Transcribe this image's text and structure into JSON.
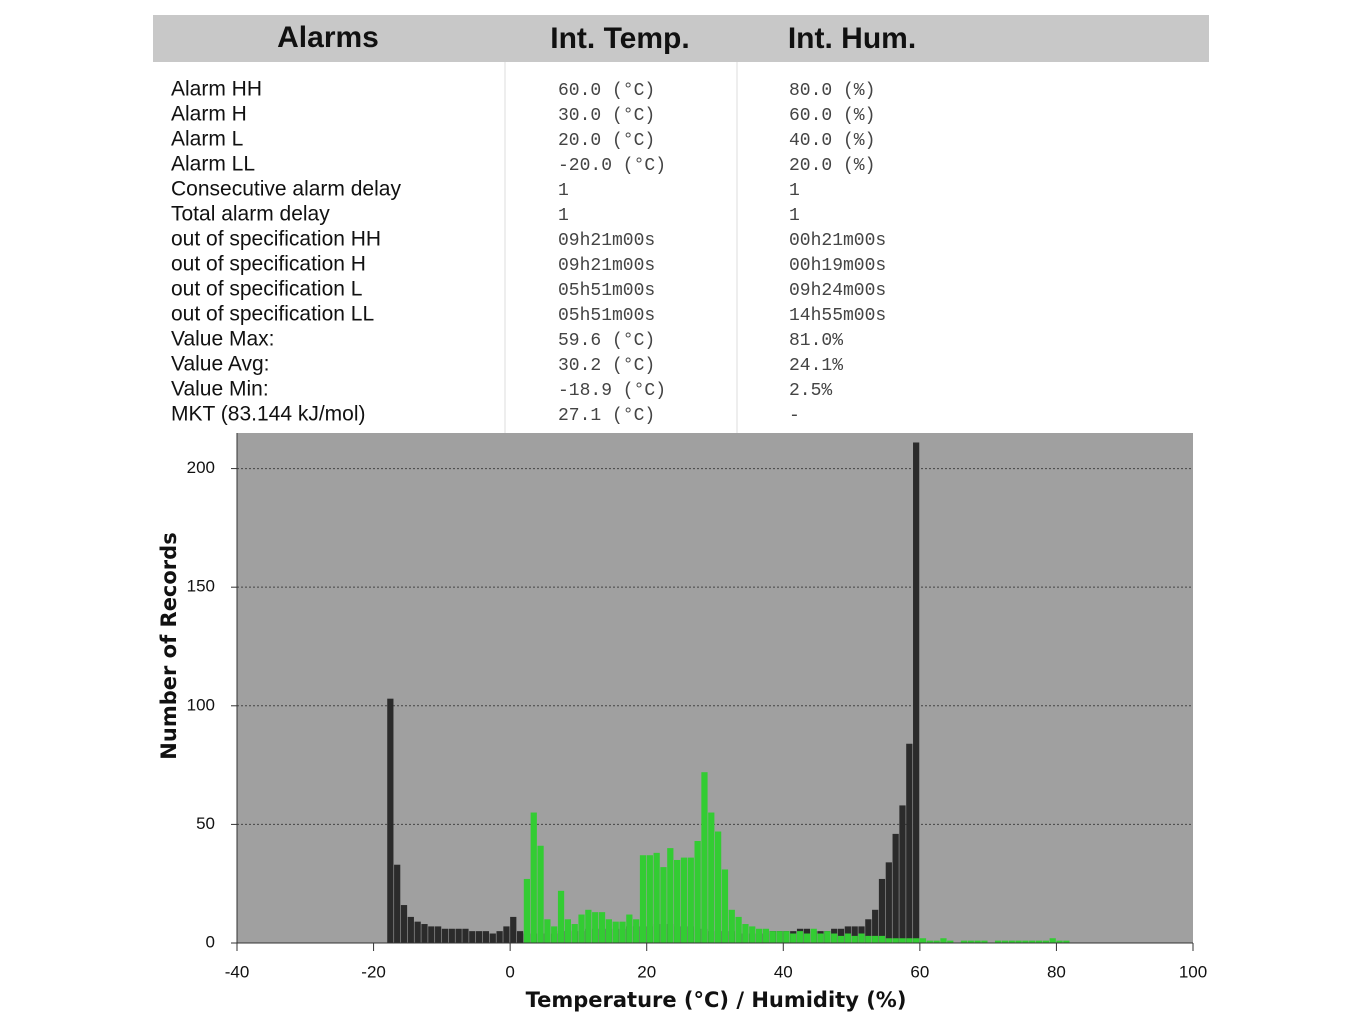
{
  "table": {
    "header": [
      "Alarms",
      "Int. Temp.",
      "Int. Hum."
    ],
    "rows": [
      [
        "Alarm HH",
        "60.0 (°C)",
        "80.0 (%)"
      ],
      [
        "Alarm H",
        "30.0 (°C)",
        "60.0 (%)"
      ],
      [
        "Alarm L",
        "20.0 (°C)",
        "40.0 (%)"
      ],
      [
        "Alarm LL",
        "-20.0 (°C)",
        "20.0 (%)"
      ],
      [
        "Consecutive alarm delay",
        "1",
        "1"
      ],
      [
        "Total alarm delay",
        "1",
        "1"
      ],
      [
        "out of specification HH",
        "09h21m00s",
        "00h21m00s"
      ],
      [
        "out of specification H",
        "09h21m00s",
        "00h19m00s"
      ],
      [
        "out of specification L",
        "05h51m00s",
        "09h24m00s"
      ],
      [
        "out of specification LL",
        "05h51m00s",
        "14h55m00s"
      ],
      [
        "Value Max:",
        "59.6 (°C)",
        "81.0%"
      ],
      [
        "Value Avg:",
        "30.2 (°C)",
        "24.1%"
      ],
      [
        "Value Min:",
        "-18.9 (°C)",
        "2.5%"
      ],
      [
        "MKT (83.144 kJ/mol)",
        "27.1 (°C)",
        "-"
      ]
    ]
  },
  "chart_data": {
    "type": "histogram",
    "x_label": "Temperature (°C) / Humidity (%)",
    "y_label": "Number of Records",
    "bins": [
      -18,
      -17,
      -16,
      -15,
      -14,
      -13,
      -12,
      -11,
      -10,
      -9,
      -8,
      -7,
      -6,
      -5,
      -4,
      -3,
      -2,
      -1,
      0,
      1,
      2,
      3,
      4,
      5,
      6,
      7,
      8,
      9,
      10,
      11,
      12,
      13,
      14,
      15,
      16,
      17,
      18,
      19,
      20,
      21,
      22,
      23,
      24,
      25,
      26,
      27,
      28,
      29,
      30,
      31,
      32,
      33,
      34,
      35,
      36,
      37,
      38,
      39,
      40,
      41,
      42,
      43,
      44,
      45,
      46,
      47,
      48,
      49,
      50,
      51,
      52,
      53,
      54,
      55,
      56,
      57,
      58,
      59,
      60,
      61,
      62,
      63,
      64,
      65,
      66,
      67,
      68,
      69,
      70,
      71,
      72,
      73,
      74,
      75,
      76,
      77,
      78,
      79,
      80,
      81,
      82
    ],
    "series": [
      {
        "color": "#2b2b2b",
        "values": [
          103,
          33,
          16,
          11,
          9,
          8,
          7,
          7,
          6,
          6,
          6,
          6,
          5,
          5,
          5,
          4,
          5,
          7,
          11,
          5,
          4,
          4,
          4,
          4,
          4,
          5,
          5,
          5,
          5,
          6,
          6,
          6,
          6,
          6,
          6,
          7,
          7,
          7,
          7,
          8,
          8,
          8,
          7,
          7,
          7,
          6,
          6,
          5,
          5,
          5,
          5,
          4,
          4,
          4,
          4,
          4,
          5,
          5,
          5,
          5,
          6,
          6,
          5,
          5,
          5,
          6,
          6,
          7,
          7,
          7,
          10,
          14,
          27,
          34,
          46,
          58,
          84,
          211,
          0,
          0,
          0,
          0,
          0,
          0,
          0,
          0,
          0,
          0,
          0,
          0,
          0,
          0,
          0,
          0,
          0,
          0,
          0,
          0,
          0,
          0
        ]
      },
      {
        "color": "#33cc33",
        "values": [
          0,
          0,
          0,
          0,
          0,
          0,
          0,
          0,
          0,
          0,
          0,
          0,
          0,
          0,
          0,
          0,
          0,
          0,
          0,
          0,
          27,
          55,
          41,
          10,
          7,
          22,
          10,
          8,
          12,
          14,
          13,
          13,
          10,
          9,
          9,
          12,
          10,
          37,
          37,
          38,
          32,
          40,
          35,
          36,
          36,
          43,
          72,
          55,
          47,
          31,
          14,
          11,
          8,
          7,
          6,
          6,
          5,
          5,
          5,
          4,
          5,
          4,
          6,
          4,
          5,
          4,
          3,
          4,
          3,
          4,
          3,
          3,
          3,
          2,
          2,
          2,
          2,
          2,
          2,
          1,
          1,
          2,
          1,
          0,
          1,
          1,
          1,
          1,
          0,
          1,
          1,
          1,
          1,
          1,
          1,
          1,
          1,
          2,
          1,
          1
        ]
      }
    ],
    "xlim": [
      -40,
      100
    ],
    "xticks": [
      -40,
      -20,
      0,
      20,
      40,
      60,
      80,
      100
    ],
    "ylim": [
      0,
      215
    ],
    "yticks": [
      0,
      50,
      100,
      150,
      200
    ],
    "grid": true,
    "background": "#a0a0a0"
  }
}
